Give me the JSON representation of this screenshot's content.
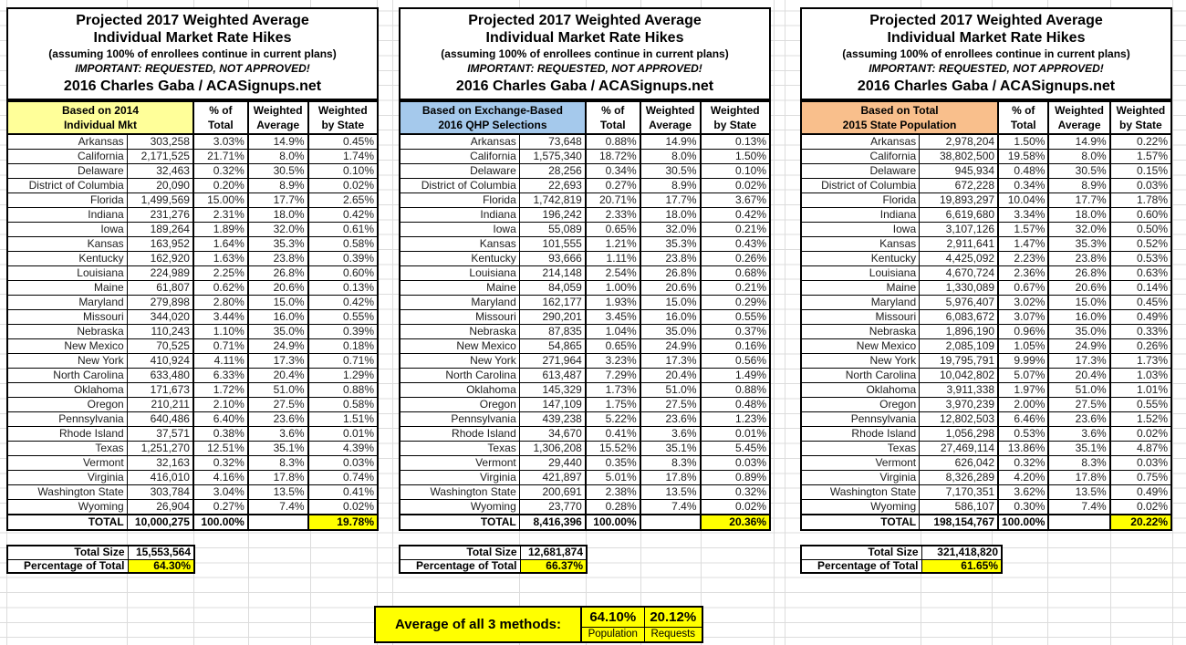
{
  "colors": {
    "grid_line": "#dcdcdc",
    "highlight_yellow": "#FFFF00",
    "table1_header": "#FFFF99",
    "table2_header": "#A5C9EC",
    "table3_header": "#F9BF8C"
  },
  "shared": {
    "title_line1": "Projected 2017 Weighted Average",
    "title_line2": "Individual Market Rate Hikes",
    "subtitle": "(assuming 100% of enrollees continue in current plans)",
    "important": "IMPORTANT: REQUESTED, NOT APPROVED!",
    "credit": "2016 Charles Gaba / ACASignups.net",
    "col_pct_line1": "% of",
    "col_pct_line2": "Total",
    "col_wavg_line1": "Weighted",
    "col_wavg_line2": "Average",
    "col_wbys_line1": "Weighted",
    "col_wbys_line2": "by State",
    "total_label": "TOTAL",
    "total_size_label": "Total Size",
    "pct_of_total_label": "Percentage of Total"
  },
  "tables": [
    {
      "header_line1": "Based on 2014",
      "header_line2": "Individual Mkt",
      "header_color": "#FFFF99",
      "rows": [
        [
          "Arkansas",
          "303,258",
          "3.03%",
          "14.9%",
          "0.45%"
        ],
        [
          "California",
          "2,171,525",
          "21.71%",
          "8.0%",
          "1.74%"
        ],
        [
          "Delaware",
          "32,463",
          "0.32%",
          "30.5%",
          "0.10%"
        ],
        [
          "District of Columbia",
          "20,090",
          "0.20%",
          "8.9%",
          "0.02%"
        ],
        [
          "Florida",
          "1,499,569",
          "15.00%",
          "17.7%",
          "2.65%"
        ],
        [
          "Indiana",
          "231,276",
          "2.31%",
          "18.0%",
          "0.42%"
        ],
        [
          "Iowa",
          "189,264",
          "1.89%",
          "32.0%",
          "0.61%"
        ],
        [
          "Kansas",
          "163,952",
          "1.64%",
          "35.3%",
          "0.58%"
        ],
        [
          "Kentucky",
          "162,920",
          "1.63%",
          "23.8%",
          "0.39%"
        ],
        [
          "Louisiana",
          "224,989",
          "2.25%",
          "26.8%",
          "0.60%"
        ],
        [
          "Maine",
          "61,807",
          "0.62%",
          "20.6%",
          "0.13%"
        ],
        [
          "Maryland",
          "279,898",
          "2.80%",
          "15.0%",
          "0.42%"
        ],
        [
          "Missouri",
          "344,020",
          "3.44%",
          "16.0%",
          "0.55%"
        ],
        [
          "Nebraska",
          "110,243",
          "1.10%",
          "35.0%",
          "0.39%"
        ],
        [
          "New Mexico",
          "70,525",
          "0.71%",
          "24.9%",
          "0.18%"
        ],
        [
          "New York",
          "410,924",
          "4.11%",
          "17.3%",
          "0.71%"
        ],
        [
          "North Carolina",
          "633,480",
          "6.33%",
          "20.4%",
          "1.29%"
        ],
        [
          "Oklahoma",
          "171,673",
          "1.72%",
          "51.0%",
          "0.88%"
        ],
        [
          "Oregon",
          "210,211",
          "2.10%",
          "27.5%",
          "0.58%"
        ],
        [
          "Pennsylvania",
          "640,486",
          "6.40%",
          "23.6%",
          "1.51%"
        ],
        [
          "Rhode Island",
          "37,571",
          "0.38%",
          "3.6%",
          "0.01%"
        ],
        [
          "Texas",
          "1,251,270",
          "12.51%",
          "35.1%",
          "4.39%"
        ],
        [
          "Vermont",
          "32,163",
          "0.32%",
          "8.3%",
          "0.03%"
        ],
        [
          "Virginia",
          "416,010",
          "4.16%",
          "17.8%",
          "0.74%"
        ],
        [
          "Washington State",
          "303,784",
          "3.04%",
          "13.5%",
          "0.41%"
        ],
        [
          "Wyoming",
          "26,904",
          "0.27%",
          "7.4%",
          "0.02%"
        ]
      ],
      "total_row": [
        "TOTAL",
        "10,000,275",
        "100.00%",
        "",
        "19.78%"
      ],
      "total_size": "15,553,564",
      "percentage_of_total": "64.30%"
    },
    {
      "header_line1": "Based on Exchange-Based",
      "header_line2": "2016 QHP Selections",
      "header_color": "#A5C9EC",
      "rows": [
        [
          "Arkansas",
          "73,648",
          "0.88%",
          "14.9%",
          "0.13%"
        ],
        [
          "California",
          "1,575,340",
          "18.72%",
          "8.0%",
          "1.50%"
        ],
        [
          "Delaware",
          "28,256",
          "0.34%",
          "30.5%",
          "0.10%"
        ],
        [
          "District of Columbia",
          "22,693",
          "0.27%",
          "8.9%",
          "0.02%"
        ],
        [
          "Florida",
          "1,742,819",
          "20.71%",
          "17.7%",
          "3.67%"
        ],
        [
          "Indiana",
          "196,242",
          "2.33%",
          "18.0%",
          "0.42%"
        ],
        [
          "Iowa",
          "55,089",
          "0.65%",
          "32.0%",
          "0.21%"
        ],
        [
          "Kansas",
          "101,555",
          "1.21%",
          "35.3%",
          "0.43%"
        ],
        [
          "Kentucky",
          "93,666",
          "1.11%",
          "23.8%",
          "0.26%"
        ],
        [
          "Louisiana",
          "214,148",
          "2.54%",
          "26.8%",
          "0.68%"
        ],
        [
          "Maine",
          "84,059",
          "1.00%",
          "20.6%",
          "0.21%"
        ],
        [
          "Maryland",
          "162,177",
          "1.93%",
          "15.0%",
          "0.29%"
        ],
        [
          "Missouri",
          "290,201",
          "3.45%",
          "16.0%",
          "0.55%"
        ],
        [
          "Nebraska",
          "87,835",
          "1.04%",
          "35.0%",
          "0.37%"
        ],
        [
          "New Mexico",
          "54,865",
          "0.65%",
          "24.9%",
          "0.16%"
        ],
        [
          "New York",
          "271,964",
          "3.23%",
          "17.3%",
          "0.56%"
        ],
        [
          "North Carolina",
          "613,487",
          "7.29%",
          "20.4%",
          "1.49%"
        ],
        [
          "Oklahoma",
          "145,329",
          "1.73%",
          "51.0%",
          "0.88%"
        ],
        [
          "Oregon",
          "147,109",
          "1.75%",
          "27.5%",
          "0.48%"
        ],
        [
          "Pennsylvania",
          "439,238",
          "5.22%",
          "23.6%",
          "1.23%"
        ],
        [
          "Rhode Island",
          "34,670",
          "0.41%",
          "3.6%",
          "0.01%"
        ],
        [
          "Texas",
          "1,306,208",
          "15.52%",
          "35.1%",
          "5.45%"
        ],
        [
          "Vermont",
          "29,440",
          "0.35%",
          "8.3%",
          "0.03%"
        ],
        [
          "Virginia",
          "421,897",
          "5.01%",
          "17.8%",
          "0.89%"
        ],
        [
          "Washington State",
          "200,691",
          "2.38%",
          "13.5%",
          "0.32%"
        ],
        [
          "Wyoming",
          "23,770",
          "0.28%",
          "7.4%",
          "0.02%"
        ]
      ],
      "total_row": [
        "TOTAL",
        "8,416,396",
        "100.00%",
        "",
        "20.36%"
      ],
      "total_size": "12,681,874",
      "percentage_of_total": "66.37%"
    },
    {
      "header_line1": "Based on Total",
      "header_line2": "2015 State Population",
      "header_color": "#F9BF8C",
      "rows": [
        [
          "Arkansas",
          "2,978,204",
          "1.50%",
          "14.9%",
          "0.22%"
        ],
        [
          "California",
          "38,802,500",
          "19.58%",
          "8.0%",
          "1.57%"
        ],
        [
          "Delaware",
          "945,934",
          "0.48%",
          "30.5%",
          "0.15%"
        ],
        [
          "District of Columbia",
          "672,228",
          "0.34%",
          "8.9%",
          "0.03%"
        ],
        [
          "Florida",
          "19,893,297",
          "10.04%",
          "17.7%",
          "1.78%"
        ],
        [
          "Indiana",
          "6,619,680",
          "3.34%",
          "18.0%",
          "0.60%"
        ],
        [
          "Iowa",
          "3,107,126",
          "1.57%",
          "32.0%",
          "0.50%"
        ],
        [
          "Kansas",
          "2,911,641",
          "1.47%",
          "35.3%",
          "0.52%"
        ],
        [
          "Kentucky",
          "4,425,092",
          "2.23%",
          "23.8%",
          "0.53%"
        ],
        [
          "Louisiana",
          "4,670,724",
          "2.36%",
          "26.8%",
          "0.63%"
        ],
        [
          "Maine",
          "1,330,089",
          "0.67%",
          "20.6%",
          "0.14%"
        ],
        [
          "Maryland",
          "5,976,407",
          "3.02%",
          "15.0%",
          "0.45%"
        ],
        [
          "Missouri",
          "6,083,672",
          "3.07%",
          "16.0%",
          "0.49%"
        ],
        [
          "Nebraska",
          "1,896,190",
          "0.96%",
          "35.0%",
          "0.33%"
        ],
        [
          "New Mexico",
          "2,085,109",
          "1.05%",
          "24.9%",
          "0.26%"
        ],
        [
          "New York",
          "19,795,791",
          "9.99%",
          "17.3%",
          "1.73%"
        ],
        [
          "North Carolina",
          "10,042,802",
          "5.07%",
          "20.4%",
          "1.03%"
        ],
        [
          "Oklahoma",
          "3,911,338",
          "1.97%",
          "51.0%",
          "1.01%"
        ],
        [
          "Oregon",
          "3,970,239",
          "2.00%",
          "27.5%",
          "0.55%"
        ],
        [
          "Pennsylvania",
          "12,802,503",
          "6.46%",
          "23.6%",
          "1.52%"
        ],
        [
          "Rhode Island",
          "1,056,298",
          "0.53%",
          "3.6%",
          "0.02%"
        ],
        [
          "Texas",
          "27,469,114",
          "13.86%",
          "35.1%",
          "4.87%"
        ],
        [
          "Vermont",
          "626,042",
          "0.32%",
          "8.3%",
          "0.03%"
        ],
        [
          "Virginia",
          "8,326,289",
          "4.20%",
          "17.8%",
          "0.75%"
        ],
        [
          "Washington State",
          "7,170,351",
          "3.62%",
          "13.5%",
          "0.49%"
        ],
        [
          "Wyoming",
          "586,107",
          "0.30%",
          "7.4%",
          "0.02%"
        ]
      ],
      "total_row": [
        "TOTAL",
        "198,154,767",
        "100.00%",
        "",
        "20.22%"
      ],
      "total_size": "321,418,820",
      "percentage_of_total": "61.65%"
    }
  ],
  "average_box": {
    "label": "Average of all 3 methods:",
    "population_value": "64.10%",
    "population_label": "Population",
    "requests_value": "20.12%",
    "requests_label": "Requests"
  }
}
